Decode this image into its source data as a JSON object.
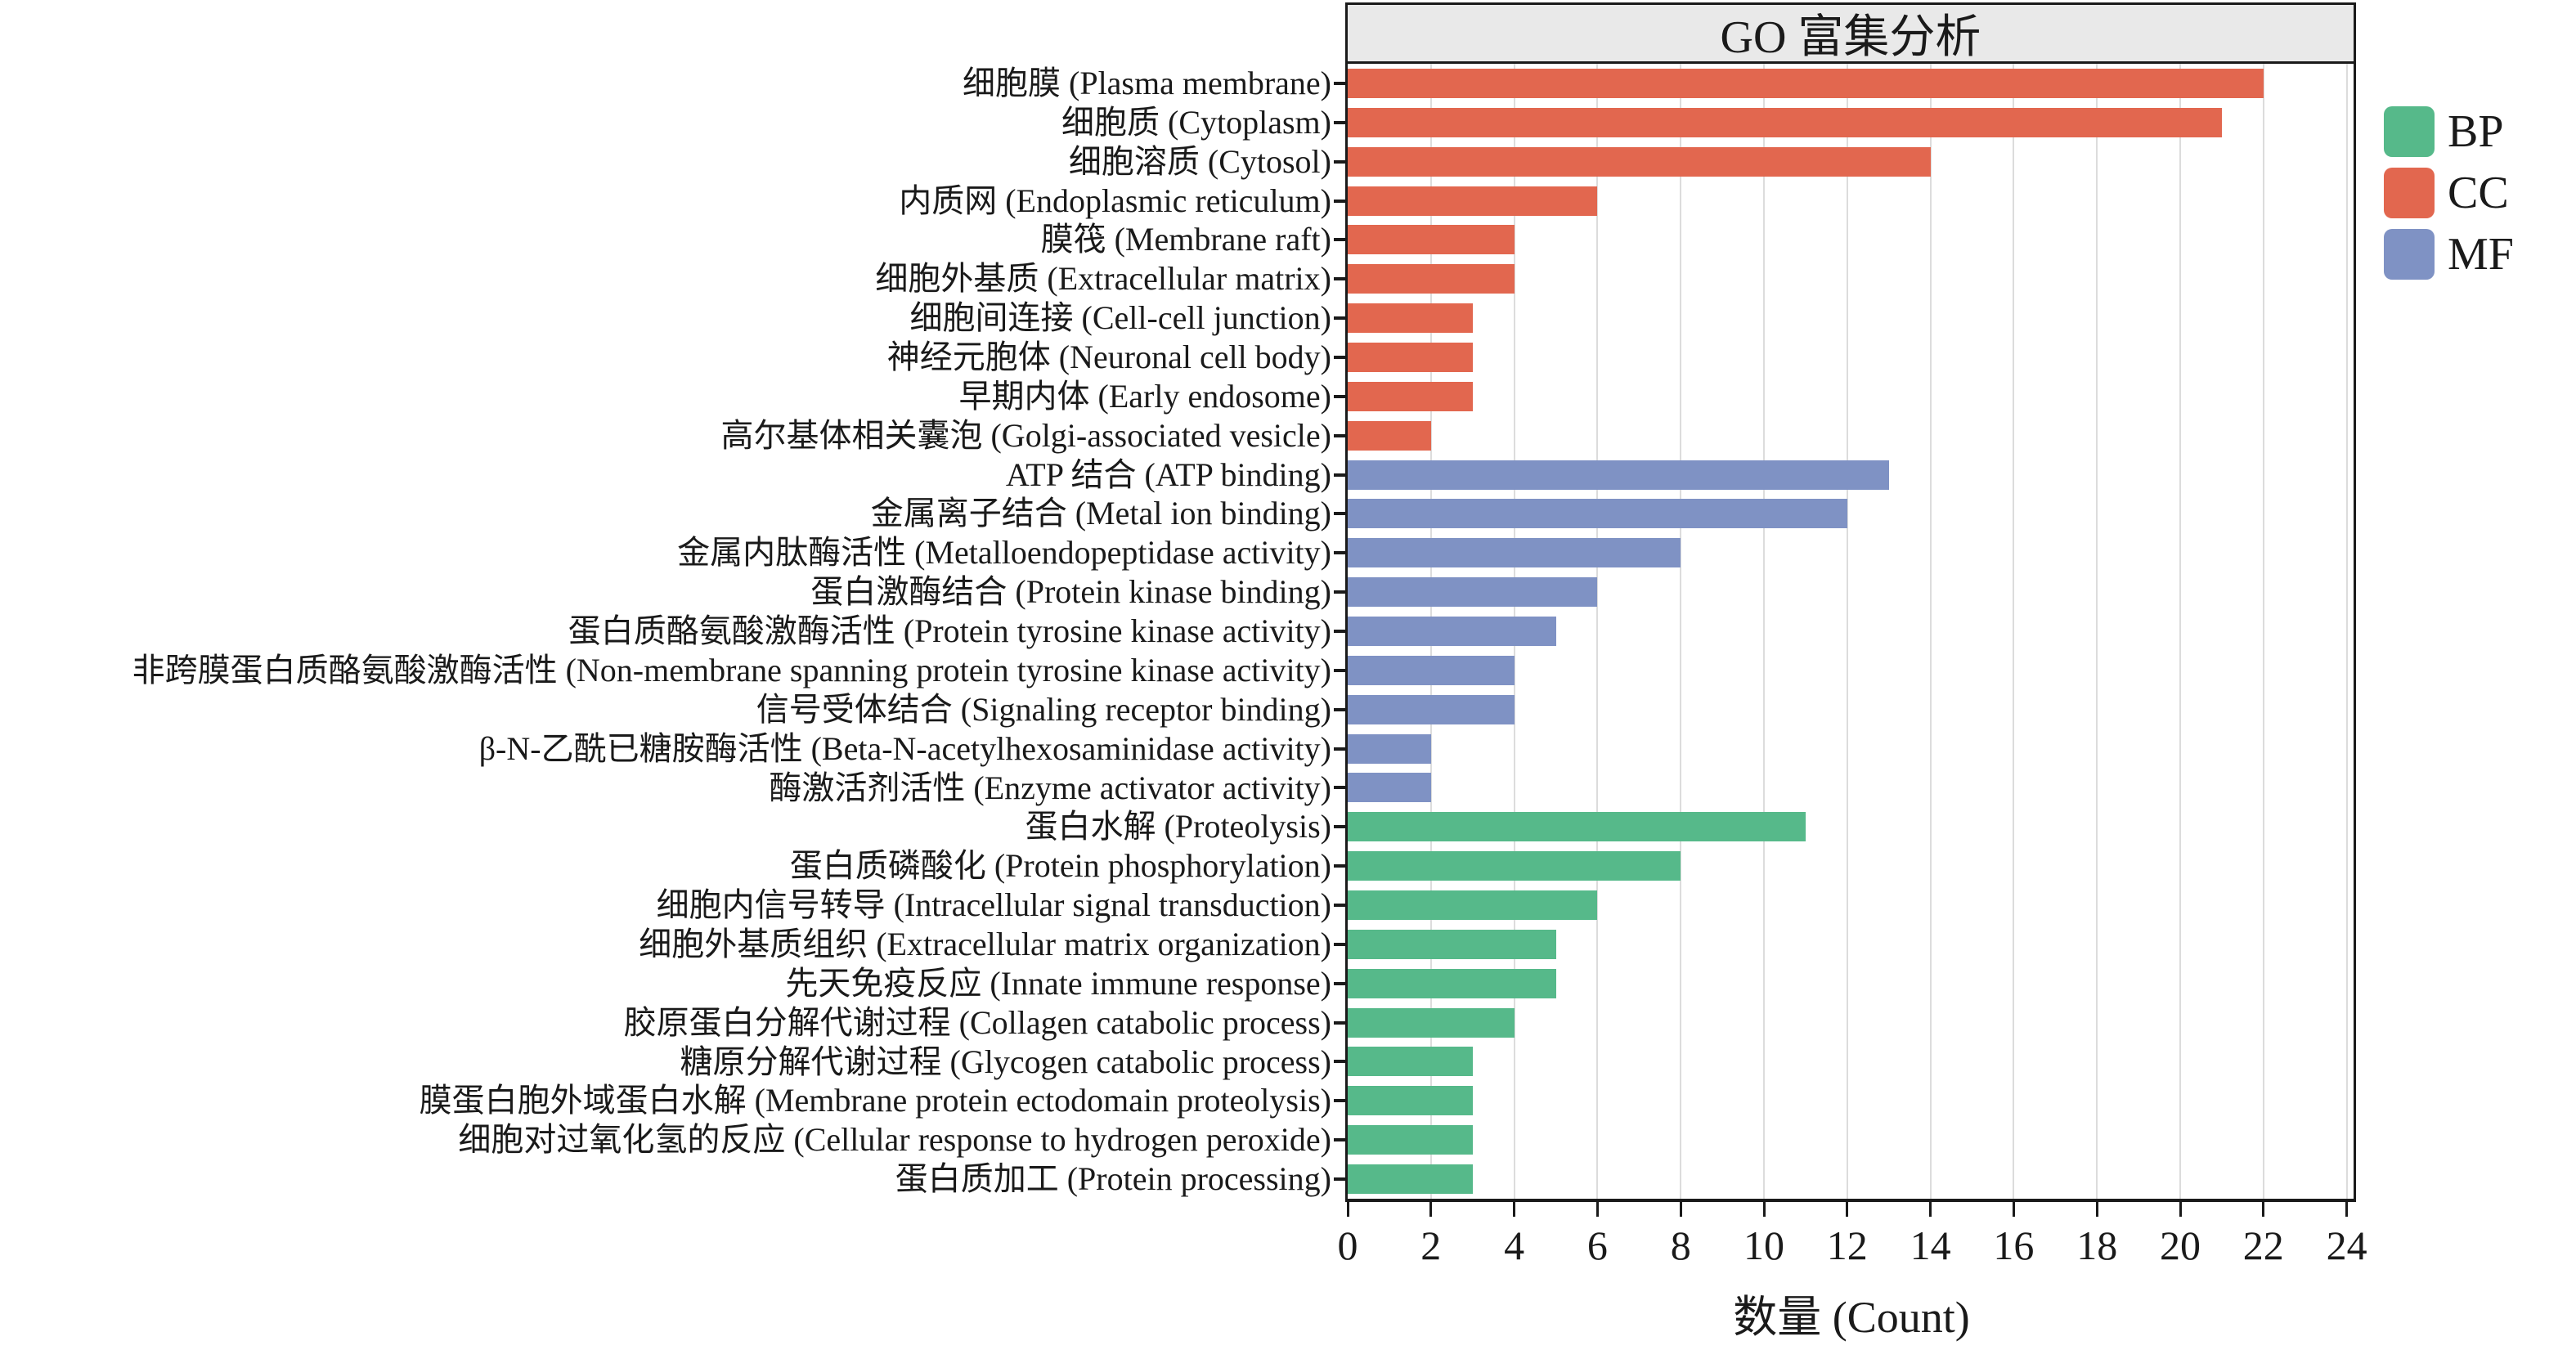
{
  "title": "GO 富集分析",
  "colors": {
    "bp_green": "#56B98A",
    "cc_red": "#E2674F",
    "mf_blue": "#7F92C4",
    "gridline": "#DCDCDC",
    "title_band_bg": "#E9E9E9",
    "ink": "#1A1A1A"
  },
  "chart_data": {
    "type": "bar",
    "orientation": "horizontal",
    "title": "GO 富集分析",
    "xlabel": "数量 (Count)",
    "xlim": [
      0,
      24
    ],
    "xticks": [
      0,
      2,
      4,
      6,
      8,
      10,
      12,
      14,
      16,
      18,
      20,
      22,
      24
    ],
    "grid": true,
    "legend_position": "right",
    "group_colors": {
      "BP": "#56B98A",
      "CC": "#E2674F",
      "MF": "#7F92C4"
    },
    "legend": [
      {
        "label": "BP",
        "color": "#56B98A"
      },
      {
        "label": "CC",
        "color": "#E2674F"
      },
      {
        "label": "MF",
        "color": "#7F92C4"
      }
    ],
    "bars": [
      {
        "label": "细胞膜 (Plasma membrane)",
        "group": "CC",
        "value": 22
      },
      {
        "label": "细胞质 (Cytoplasm)",
        "group": "CC",
        "value": 21
      },
      {
        "label": "细胞溶质 (Cytosol)",
        "group": "CC",
        "value": 14
      },
      {
        "label": "内质网 (Endoplasmic reticulum)",
        "group": "CC",
        "value": 6
      },
      {
        "label": "膜筏 (Membrane raft)",
        "group": "CC",
        "value": 4
      },
      {
        "label": "细胞外基质 (Extracellular matrix)",
        "group": "CC",
        "value": 4
      },
      {
        "label": "细胞间连接 (Cell-cell junction)",
        "group": "CC",
        "value": 3
      },
      {
        "label": "神经元胞体 (Neuronal cell body)",
        "group": "CC",
        "value": 3
      },
      {
        "label": "早期内体 (Early endosome)",
        "group": "CC",
        "value": 3
      },
      {
        "label": "高尔基体相关囊泡 (Golgi-associated vesicle)",
        "group": "CC",
        "value": 2
      },
      {
        "label": "ATP 结合 (ATP binding)",
        "group": "MF",
        "value": 13
      },
      {
        "label": "金属离子结合 (Metal ion binding)",
        "group": "MF",
        "value": 12
      },
      {
        "label": "金属内肽酶活性 (Metalloendopeptidase activity)",
        "group": "MF",
        "value": 8
      },
      {
        "label": "蛋白激酶结合 (Protein kinase binding)",
        "group": "MF",
        "value": 6
      },
      {
        "label": "蛋白质酪氨酸激酶活性 (Protein tyrosine kinase activity)",
        "group": "MF",
        "value": 5
      },
      {
        "label": "非跨膜蛋白质酪氨酸激酶活性 (Non-membrane spanning protein tyrosine kinase activity)",
        "group": "MF",
        "value": 4
      },
      {
        "label": "信号受体结合 (Signaling receptor binding)",
        "group": "MF",
        "value": 4
      },
      {
        "label": "β-N-乙酰已糖胺酶活性 (Beta-N-acetylhexosaminidase activity)",
        "group": "MF",
        "value": 2
      },
      {
        "label": "酶激活剂活性 (Enzyme activator activity)",
        "group": "MF",
        "value": 2
      },
      {
        "label": "蛋白水解 (Proteolysis)",
        "group": "BP",
        "value": 11
      },
      {
        "label": "蛋白质磷酸化 (Protein phosphorylation)",
        "group": "BP",
        "value": 8
      },
      {
        "label": "细胞内信号转导 (Intracellular signal transduction)",
        "group": "BP",
        "value": 6
      },
      {
        "label": "细胞外基质组织 (Extracellular matrix organization)",
        "group": "BP",
        "value": 5
      },
      {
        "label": "先天免疫反应 (Innate immune response)",
        "group": "BP",
        "value": 5
      },
      {
        "label": "胶原蛋白分解代谢过程 (Collagen catabolic process)",
        "group": "BP",
        "value": 4
      },
      {
        "label": "糖原分解代谢过程 (Glycogen catabolic process)",
        "group": "BP",
        "value": 3
      },
      {
        "label": "膜蛋白胞外域蛋白水解 (Membrane protein ectodomain proteolysis)",
        "group": "BP",
        "value": 3
      },
      {
        "label": "细胞对过氧化氢的反应 (Cellular response to hydrogen peroxide)",
        "group": "BP",
        "value": 3
      },
      {
        "label": "蛋白质加工 (Protein processing)",
        "group": "BP",
        "value": 3
      }
    ]
  }
}
